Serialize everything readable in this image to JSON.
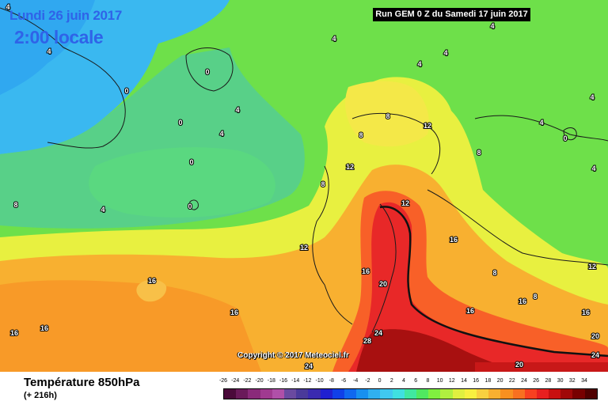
{
  "header": {
    "date": "Lundi 26 juin 2017",
    "local_time": "2:00 locale",
    "run_info": "Run GEM 0 Z du Samedi 17 juin 2017"
  },
  "copyright": "Copyright © 2017 Meteociel.fr",
  "footer": {
    "title": "Température 850hPa",
    "subtitle": "(+ 216h)"
  },
  "legend": {
    "labels": [
      "-26",
      "-24",
      "-22",
      "-20",
      "-18",
      "-16",
      "-14",
      "-12",
      "-10",
      "-8",
      "-6",
      "-4",
      "-2",
      "0",
      "2",
      "4",
      "6",
      "8",
      "10",
      "12",
      "14",
      "16",
      "18",
      "20",
      "22",
      "24",
      "26",
      "28",
      "30",
      "32",
      "34"
    ],
    "colors": [
      "#4a0a3a",
      "#6a1a5a",
      "#8a2a7a",
      "#a03a90",
      "#b050a8",
      "#6a4aa0",
      "#4a3a9a",
      "#3a2ab0",
      "#2020d0",
      "#1040e8",
      "#1068f0",
      "#1890f0",
      "#30b0f0",
      "#40c8f0",
      "#40e0e0",
      "#40e8a0",
      "#50e860",
      "#80f040",
      "#b0f040",
      "#e0f040",
      "#f8f040",
      "#f8d040",
      "#f8b030",
      "#f89020",
      "#f87020",
      "#f84020",
      "#e82020",
      "#c81010",
      "#a00808",
      "#780000",
      "#500000"
    ]
  },
  "map_labels": [
    {
      "text": "4",
      "value": 4
    },
    {
      "text": "4",
      "value": 4
    },
    {
      "text": "4",
      "value": 4
    },
    {
      "text": "4",
      "value": 4
    },
    {
      "text": "4",
      "value": 4
    },
    {
      "text": "4",
      "value": 4
    },
    {
      "text": "4",
      "value": 4
    },
    {
      "text": "4",
      "value": 4
    },
    {
      "text": "4",
      "value": 4
    },
    {
      "text": "4",
      "value": 4
    },
    {
      "text": "4",
      "value": 4
    },
    {
      "text": "4",
      "value": 4
    },
    {
      "text": "0",
      "value": 0
    },
    {
      "text": "0",
      "value": 0
    },
    {
      "text": "0",
      "value": 0
    },
    {
      "text": "0",
      "value": 0
    },
    {
      "text": "0",
      "value": 0
    },
    {
      "text": "0",
      "value": 0
    },
    {
      "text": "8",
      "value": 8
    },
    {
      "text": "8",
      "value": 8
    },
    {
      "text": "8",
      "value": 8
    },
    {
      "text": "8",
      "value": 8
    },
    {
      "text": "8",
      "value": 8
    },
    {
      "text": "8",
      "value": 8
    },
    {
      "text": "8",
      "value": 8
    },
    {
      "text": "12",
      "value": 12
    },
    {
      "text": "12",
      "value": 12
    },
    {
      "text": "12",
      "value": 12
    },
    {
      "text": "12",
      "value": 12
    },
    {
      "text": "12",
      "value": 12
    },
    {
      "text": "16",
      "value": 16
    },
    {
      "text": "16",
      "value": 16
    },
    {
      "text": "16",
      "value": 16
    },
    {
      "text": "16",
      "value": 16
    },
    {
      "text": "16",
      "value": 16
    },
    {
      "text": "16",
      "value": 16
    },
    {
      "text": "16",
      "value": 16
    },
    {
      "text": "16",
      "value": 16
    },
    {
      "text": "16",
      "value": 16
    },
    {
      "text": "20",
      "value": 20
    },
    {
      "text": "20",
      "value": 20
    },
    {
      "text": "20",
      "value": 20
    },
    {
      "text": "24",
      "value": 24
    },
    {
      "text": "24",
      "value": 24
    },
    {
      "text": "24",
      "value": 24
    },
    {
      "text": "28",
      "value": 28
    }
  ]
}
